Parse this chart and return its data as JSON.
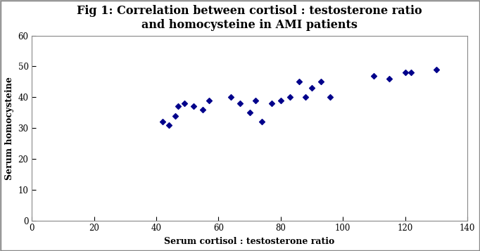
{
  "title_line1": "Fig 1: Correlation between cortisol : testosterone ratio",
  "title_line2": "and homocysteine in AMI patients",
  "xlabel": "Serum cortisol : testosterone ratio",
  "ylabel": "Serum homocysteine",
  "x": [
    42,
    44,
    46,
    47,
    49,
    52,
    55,
    57,
    64,
    67,
    70,
    72,
    74,
    77,
    80,
    83,
    86,
    88,
    90,
    93,
    96,
    110,
    115,
    120,
    122,
    130
  ],
  "y": [
    32,
    31,
    34,
    37,
    38,
    37,
    36,
    39,
    40,
    38,
    35,
    39,
    32,
    38,
    39,
    40,
    45,
    40,
    43,
    45,
    40,
    47,
    46,
    48,
    48,
    49
  ],
  "marker_color": "#00008B",
  "marker": "D",
  "marker_size": 4,
  "xlim": [
    0,
    140
  ],
  "ylim": [
    0,
    60
  ],
  "xticks": [
    0,
    20,
    40,
    60,
    80,
    100,
    120,
    140
  ],
  "yticks": [
    0,
    10,
    20,
    30,
    40,
    50,
    60
  ],
  "title_fontsize": 11.5,
  "label_fontsize": 9,
  "tick_fontsize": 8.5,
  "bg_color": "#ffffff",
  "text_color": "#000000",
  "title_color": "#000000",
  "label_color": "#000000",
  "tick_color": "#000000",
  "border_color": "#aaaaaa"
}
